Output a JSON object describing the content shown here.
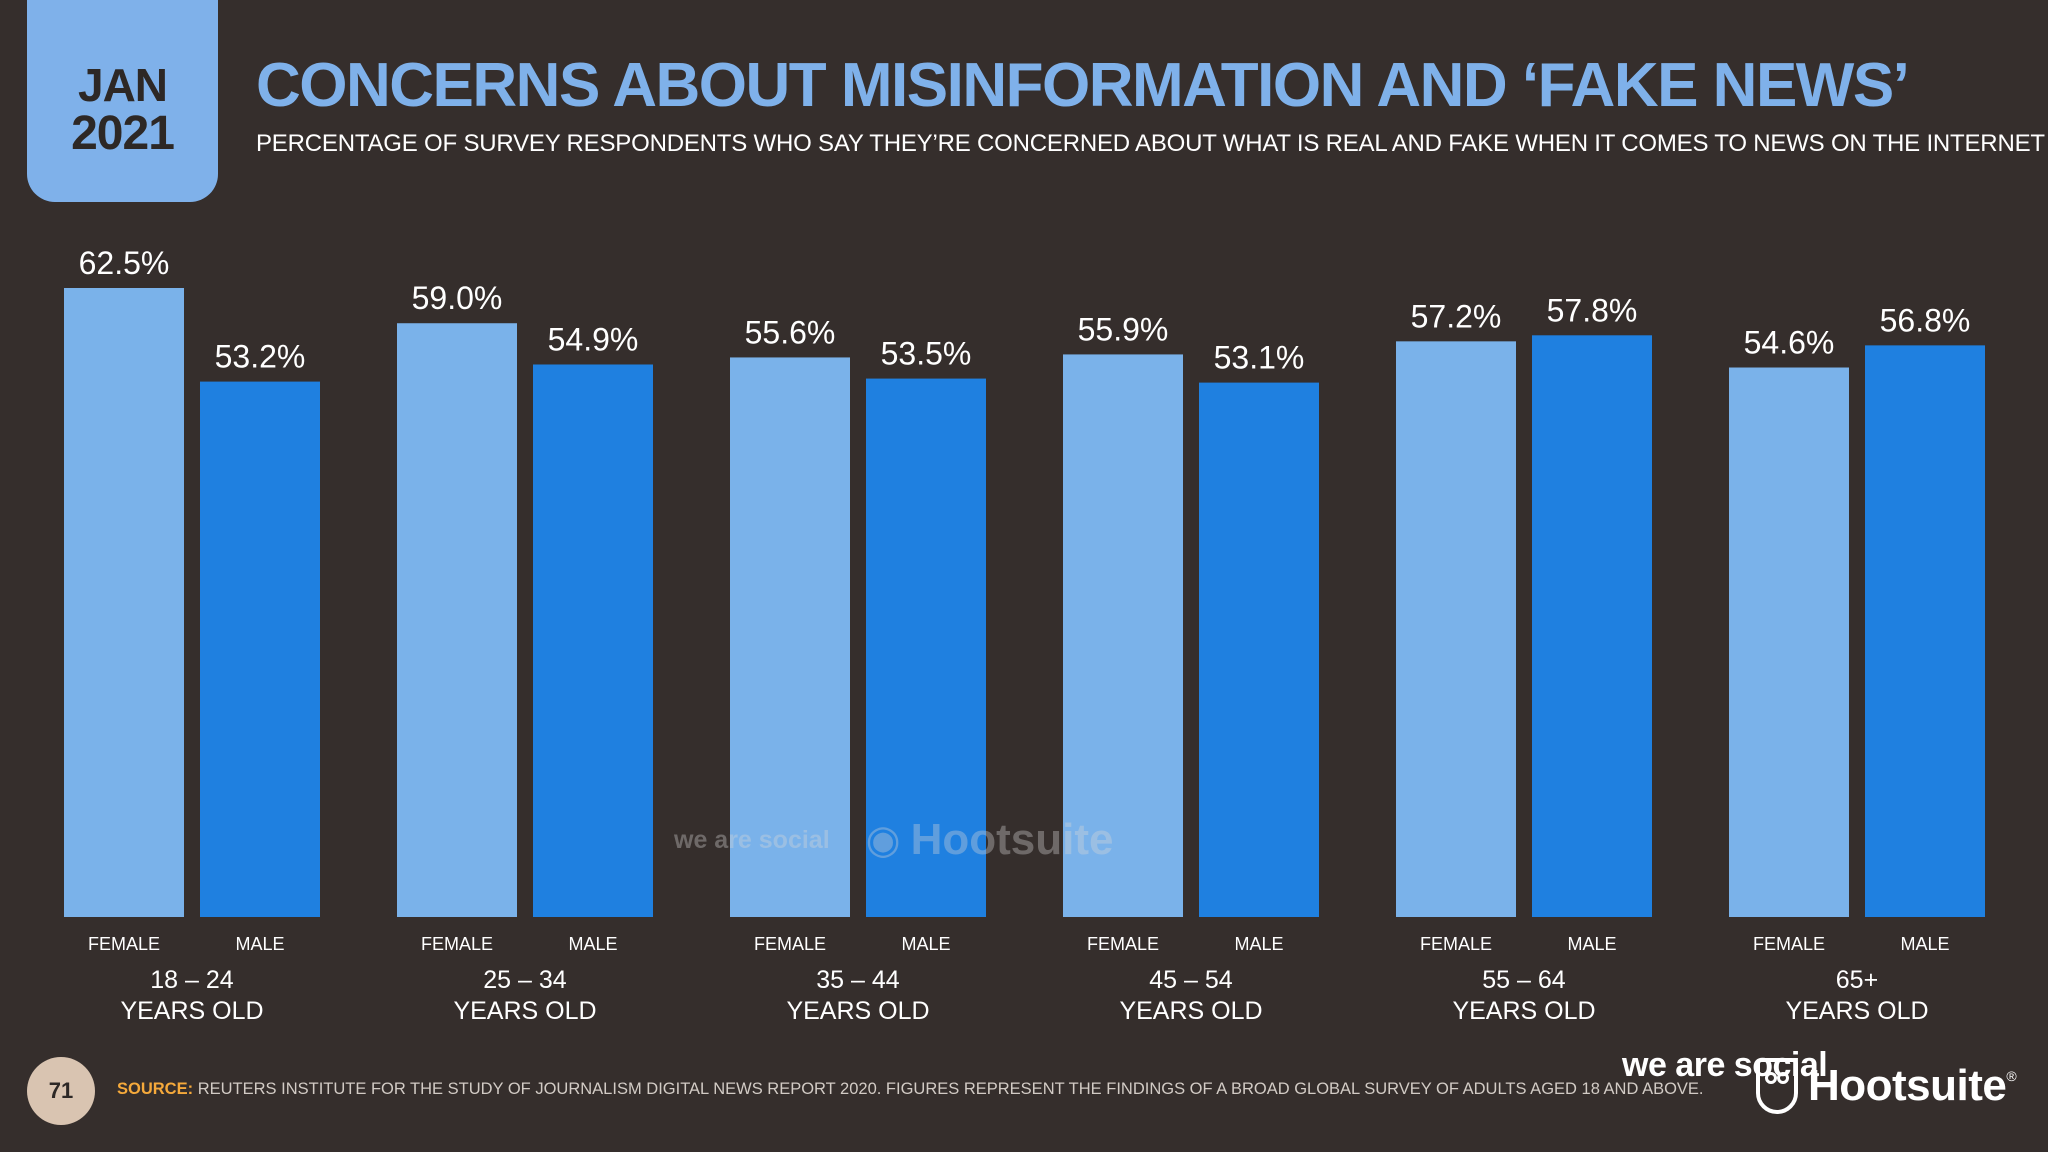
{
  "badge": {
    "month": "JAN",
    "year": "2021"
  },
  "title": "CONCERNS ABOUT MISINFORMATION AND ‘FAKE NEWS’",
  "subtitle": "PERCENTAGE OF SURVEY RESPONDENTS WHO SAY THEY’RE CONCERNED ABOUT WHAT IS REAL AND FAKE WHEN IT COMES TO NEWS ON THE INTERNET",
  "colors": {
    "background": "#352e2c",
    "female": "#7ab2ea",
    "male": "#1f80e0",
    "title": "#7fb1ea",
    "source_label": "#f5a93b"
  },
  "chart_data": {
    "type": "bar",
    "title": "CONCERNS ABOUT MISINFORMATION AND ‘FAKE NEWS’",
    "xlabel": "",
    "ylabel": "",
    "ylim": [
      0,
      62.5
    ],
    "grid": false,
    "groups": [
      {
        "line1": "18 – 24",
        "line2": "YEARS OLD"
      },
      {
        "line1": "25 – 34",
        "line2": "YEARS OLD"
      },
      {
        "line1": "35 – 44",
        "line2": "YEARS OLD"
      },
      {
        "line1": "45 – 54",
        "line2": "YEARS OLD"
      },
      {
        "line1": "55 – 64",
        "line2": "YEARS OLD"
      },
      {
        "line1": "65+",
        "line2": "YEARS OLD"
      }
    ],
    "series": [
      {
        "name": "FEMALE",
        "values": [
          62.5,
          59.0,
          55.6,
          55.9,
          57.2,
          54.6
        ],
        "labels": [
          "62.5%",
          "59.0%",
          "55.6%",
          "55.9%",
          "57.2%",
          "54.6%"
        ]
      },
      {
        "name": "MALE",
        "values": [
          53.2,
          54.9,
          53.5,
          53.1,
          57.8,
          56.8
        ],
        "labels": [
          "53.2%",
          "54.9%",
          "53.5%",
          "53.1%",
          "57.8%",
          "56.8%"
        ]
      }
    ]
  },
  "watermark": {
    "wearesocial": "we are social",
    "hootsuite": "Hootsuite"
  },
  "footer": {
    "page_number": "71",
    "source_label": "SOURCE:",
    "source_text": "REUTERS INSTITUTE FOR THE STUDY OF JOURNALISM DIGITAL NEWS REPORT 2020. FIGURES REPRESENT THE FINDINGS OF A BROAD GLOBAL SURVEY OF ADULTS AGED 18 AND ABOVE.",
    "logo_wearesocial": "we are social",
    "logo_hootsuite": "Hootsuite",
    "logo_reg": "®"
  }
}
